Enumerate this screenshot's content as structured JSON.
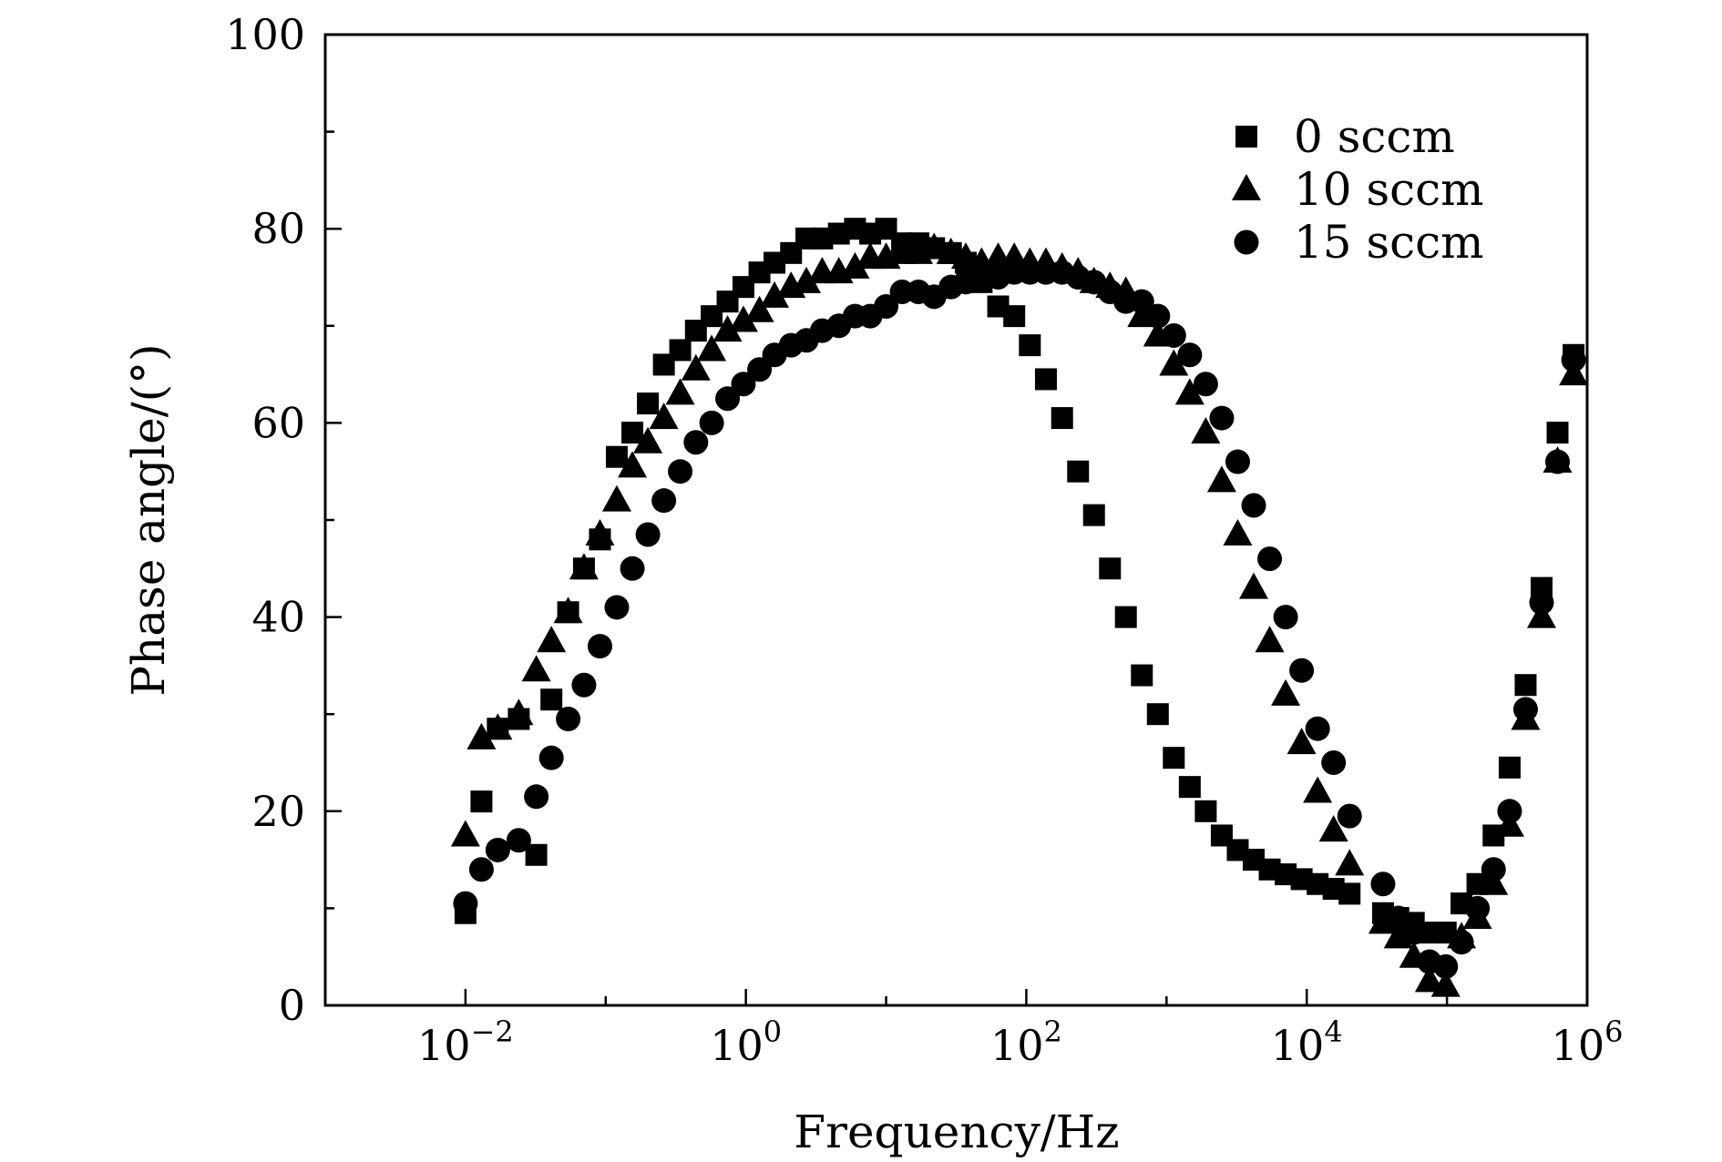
{
  "chart_data": {
    "type": "scatter",
    "xscale": "log",
    "xlabel": "Frequency/Hz",
    "ylabel": "Phase angle/(°)",
    "xlim": [
      0.001,
      1000000
    ],
    "ylim": [
      0,
      100
    ],
    "x_ticks": [
      {
        "value": 0.01,
        "base": "10",
        "exp": "−2"
      },
      {
        "value": 1,
        "base": "10",
        "exp": "0"
      },
      {
        "value": 100,
        "base": "10",
        "exp": "2"
      },
      {
        "value": 10000,
        "base": "10",
        "exp": "4"
      },
      {
        "value": 1000000,
        "base": "10",
        "exp": "6"
      }
    ],
    "y_ticks": [
      0,
      20,
      40,
      60,
      80,
      100
    ],
    "grid": false,
    "legend_position": "top-right",
    "series": [
      {
        "name": "0 sccm",
        "marker": "square",
        "color": "#000000",
        "points": [
          [
            0.01,
            9.5
          ],
          [
            0.013,
            21
          ],
          [
            0.017,
            28.5
          ],
          [
            0.024,
            29.5
          ],
          [
            0.032,
            15.5
          ],
          [
            0.041,
            31.5
          ],
          [
            0.054,
            40.5
          ],
          [
            0.07,
            45
          ],
          [
            0.091,
            48
          ],
          [
            0.12,
            56.5
          ],
          [
            0.155,
            59
          ],
          [
            0.2,
            62
          ],
          [
            0.26,
            66
          ],
          [
            0.34,
            67.5
          ],
          [
            0.44,
            69.5
          ],
          [
            0.57,
            71
          ],
          [
            0.74,
            72.5
          ],
          [
            0.96,
            74
          ],
          [
            1.25,
            75.5
          ],
          [
            1.6,
            76.5
          ],
          [
            2.1,
            77.5
          ],
          [
            2.7,
            79
          ],
          [
            3.5,
            79
          ],
          [
            4.6,
            79.5
          ],
          [
            6,
            80
          ],
          [
            7.7,
            79.5
          ],
          [
            10,
            80
          ],
          [
            13,
            78.5
          ],
          [
            17,
            78.5
          ],
          [
            22,
            78
          ],
          [
            29,
            77.5
          ],
          [
            37,
            76.5
          ],
          [
            48,
            74.5
          ],
          [
            63,
            72
          ],
          [
            82,
            71
          ],
          [
            106,
            68
          ],
          [
            138,
            64.5
          ],
          [
            180,
            60.5
          ],
          [
            234,
            55
          ],
          [
            304,
            50.5
          ],
          [
            395,
            45
          ],
          [
            513,
            40
          ],
          [
            667,
            34
          ],
          [
            867,
            30
          ],
          [
            1127,
            25.5
          ],
          [
            1465,
            22.5
          ],
          [
            1905,
            20
          ],
          [
            2477,
            17.5
          ],
          [
            3220,
            16
          ],
          [
            4186,
            15
          ],
          [
            5442,
            14
          ],
          [
            7075,
            13.5
          ],
          [
            9197,
            13
          ],
          [
            11957,
            12.5
          ],
          [
            15544,
            12
          ],
          [
            20207,
            11.5
          ],
          [
            35000,
            9.5
          ],
          [
            45000,
            9
          ],
          [
            58000,
            8.5
          ],
          [
            75000,
            7.5
          ],
          [
            98000,
            7.5
          ],
          [
            127000,
            10.5
          ],
          [
            165000,
            12.5
          ],
          [
            215000,
            17.5
          ],
          [
            280000,
            24.5
          ],
          [
            364000,
            33
          ],
          [
            473000,
            43
          ],
          [
            615000,
            59
          ],
          [
            800000,
            67
          ]
        ]
      },
      {
        "name": "10 sccm",
        "marker": "triangle",
        "color": "#000000",
        "points": [
          [
            0.01,
            17.5
          ],
          [
            0.013,
            27.5
          ],
          [
            0.017,
            28.5
          ],
          [
            0.024,
            30
          ],
          [
            0.032,
            34.5
          ],
          [
            0.041,
            37.5
          ],
          [
            0.054,
            40.5
          ],
          [
            0.07,
            45
          ],
          [
            0.091,
            48.5
          ],
          [
            0.12,
            52
          ],
          [
            0.155,
            55.5
          ],
          [
            0.2,
            58
          ],
          [
            0.26,
            60.5
          ],
          [
            0.34,
            63
          ],
          [
            0.44,
            65.5
          ],
          [
            0.57,
            67.5
          ],
          [
            0.74,
            69.5
          ],
          [
            0.96,
            70.5
          ],
          [
            1.25,
            71.5
          ],
          [
            1.6,
            73
          ],
          [
            2.1,
            74
          ],
          [
            2.7,
            74.5
          ],
          [
            3.5,
            75.5
          ],
          [
            4.6,
            75.5
          ],
          [
            6,
            76
          ],
          [
            7.7,
            77
          ],
          [
            10,
            77
          ],
          [
            13,
            77.5
          ],
          [
            17,
            77.5
          ],
          [
            22,
            78
          ],
          [
            29,
            77.5
          ],
          [
            37,
            77
          ],
          [
            48,
            76.5
          ],
          [
            63,
            77
          ],
          [
            82,
            77
          ],
          [
            106,
            76.5
          ],
          [
            138,
            76.5
          ],
          [
            180,
            76
          ],
          [
            234,
            75.5
          ],
          [
            304,
            74.5
          ],
          [
            395,
            74
          ],
          [
            513,
            73.5
          ],
          [
            667,
            71
          ],
          [
            867,
            69
          ],
          [
            1127,
            66
          ],
          [
            1465,
            63
          ],
          [
            1905,
            59
          ],
          [
            2477,
            54
          ],
          [
            3220,
            48.5
          ],
          [
            4186,
            43
          ],
          [
            5442,
            37.5
          ],
          [
            7075,
            32
          ],
          [
            9197,
            27
          ],
          [
            11957,
            22
          ],
          [
            15544,
            18
          ],
          [
            20207,
            14.5
          ],
          [
            35000,
            8.5
          ],
          [
            45000,
            7
          ],
          [
            58000,
            5
          ],
          [
            75000,
            2.5
          ],
          [
            98000,
            2
          ],
          [
            127000,
            7
          ],
          [
            165000,
            9
          ],
          [
            215000,
            12.5
          ],
          [
            280000,
            18.5
          ],
          [
            364000,
            29.5
          ],
          [
            473000,
            40
          ],
          [
            615000,
            56
          ],
          [
            800000,
            65
          ]
        ]
      },
      {
        "name": "15 sccm",
        "marker": "circle",
        "color": "#000000",
        "points": [
          [
            0.01,
            10.5
          ],
          [
            0.013,
            14
          ],
          [
            0.017,
            16
          ],
          [
            0.024,
            17
          ],
          [
            0.032,
            21.5
          ],
          [
            0.041,
            25.5
          ],
          [
            0.054,
            29.5
          ],
          [
            0.07,
            33
          ],
          [
            0.091,
            37
          ],
          [
            0.12,
            41
          ],
          [
            0.155,
            45
          ],
          [
            0.2,
            48.5
          ],
          [
            0.26,
            52
          ],
          [
            0.34,
            55
          ],
          [
            0.44,
            58
          ],
          [
            0.57,
            60
          ],
          [
            0.74,
            62.5
          ],
          [
            0.96,
            64
          ],
          [
            1.25,
            65.5
          ],
          [
            1.6,
            67
          ],
          [
            2.1,
            68
          ],
          [
            2.7,
            68.5
          ],
          [
            3.5,
            69.5
          ],
          [
            4.6,
            70
          ],
          [
            6,
            71
          ],
          [
            7.7,
            71
          ],
          [
            10,
            72
          ],
          [
            13,
            73.5
          ],
          [
            17,
            73.5
          ],
          [
            22,
            73
          ],
          [
            29,
            74
          ],
          [
            37,
            74.5
          ],
          [
            48,
            75
          ],
          [
            63,
            75
          ],
          [
            82,
            75.5
          ],
          [
            106,
            75.5
          ],
          [
            138,
            75.5
          ],
          [
            180,
            75.5
          ],
          [
            234,
            75
          ],
          [
            304,
            74.5
          ],
          [
            395,
            73.5
          ],
          [
            513,
            72.5
          ],
          [
            667,
            72.5
          ],
          [
            867,
            71
          ],
          [
            1127,
            69
          ],
          [
            1465,
            67
          ],
          [
            1905,
            64
          ],
          [
            2477,
            60.5
          ],
          [
            3220,
            56
          ],
          [
            4186,
            51.5
          ],
          [
            5442,
            46
          ],
          [
            7075,
            40
          ],
          [
            9197,
            34.5
          ],
          [
            11957,
            28.5
          ],
          [
            15544,
            25
          ],
          [
            20207,
            19.5
          ],
          [
            35000,
            12.5
          ],
          [
            45000,
            9
          ],
          [
            58000,
            7.5
          ],
          [
            75000,
            4.5
          ],
          [
            98000,
            4
          ],
          [
            127000,
            6.5
          ],
          [
            165000,
            10
          ],
          [
            215000,
            14
          ],
          [
            280000,
            20
          ],
          [
            364000,
            30.5
          ],
          [
            473000,
            41.5
          ],
          [
            615000,
            56
          ],
          [
            800000,
            66.5
          ]
        ]
      }
    ]
  }
}
